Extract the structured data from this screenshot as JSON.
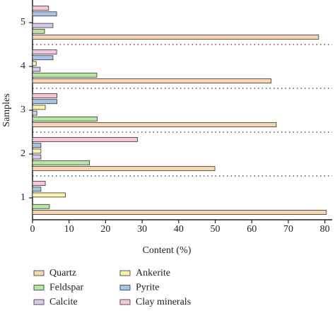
{
  "chart_data": {
    "type": "hbar",
    "categories": [
      "1",
      "2",
      "3",
      "4",
      "5"
    ],
    "series": [
      {
        "name": "Quartz",
        "color": "#f9d5b0",
        "values": [
          80.4,
          49.9,
          66.7,
          65.3,
          78.3
        ]
      },
      {
        "name": "Feldspar",
        "color": "#b6e6a0",
        "values": [
          4.6,
          15.6,
          17.7,
          17.6,
          3.3
        ]
      },
      {
        "name": "Calcite",
        "color": "#d8c9ec",
        "values": [
          0,
          2.3,
          1.2,
          2.1,
          5.6
        ]
      },
      {
        "name": "Ankerite",
        "color": "#fbf3a8",
        "values": [
          9,
          2.3,
          3.5,
          1,
          0
        ]
      },
      {
        "name": "Pyrite",
        "color": "#a9c4e6",
        "values": [
          2.3,
          2.3,
          6.7,
          5.6,
          6.6
        ]
      },
      {
        "name": "Clay minerals",
        "color": "#f6c6dc",
        "values": [
          3.5,
          28.7,
          6.7,
          6.6,
          4.4
        ]
      }
    ],
    "xlabel": "Content (%)",
    "ylabel": "Samples",
    "xlim": [
      0,
      82
    ],
    "xticks": [
      0,
      10,
      20,
      30,
      40,
      50,
      60,
      70,
      80
    ],
    "separators": true
  }
}
